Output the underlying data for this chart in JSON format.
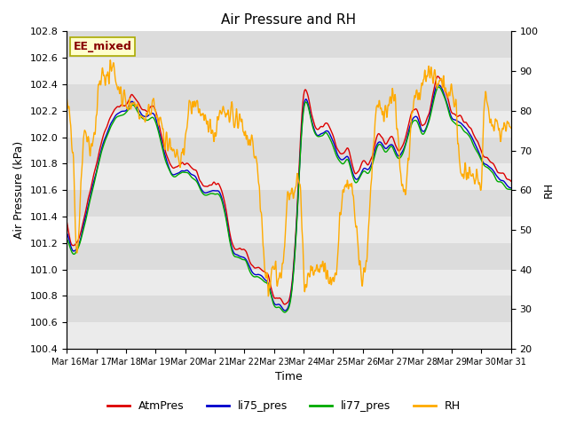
{
  "title": "Air Pressure and RH",
  "xlabel": "Time",
  "ylabel_left": "Air Pressure (kPa)",
  "ylabel_right": "RH",
  "annotation": "EE_mixed",
  "ylim_left": [
    100.4,
    102.8
  ],
  "ylim_right": [
    20,
    100
  ],
  "yticks_left": [
    100.4,
    100.6,
    100.8,
    101.0,
    101.2,
    101.4,
    101.6,
    101.8,
    102.0,
    102.2,
    102.4,
    102.6,
    102.8
  ],
  "yticks_right": [
    20,
    30,
    40,
    50,
    60,
    70,
    80,
    90,
    100
  ],
  "xtick_labels": [
    "Mar 16",
    "Mar 17",
    "Mar 18",
    "Mar 19",
    "Mar 20",
    "Mar 21",
    "Mar 22",
    "Mar 23",
    "Mar 24",
    "Mar 25",
    "Mar 26",
    "Mar 27",
    "Mar 28",
    "Mar 29",
    "Mar 30",
    "Mar 31"
  ],
  "legend_labels": [
    "AtmPres",
    "li75_pres",
    "li77_pres",
    "RH"
  ],
  "colors": {
    "AtmPres": "#dd0000",
    "li75_pres": "#0000cc",
    "li77_pres": "#00aa00",
    "RH": "#ffaa00"
  },
  "bg_colors": [
    "#ebebeb",
    "#dcdcdc"
  ],
  "annotation_bg": "#ffffcc",
  "annotation_fg": "#880000",
  "annotation_edge": "#aaaa00",
  "title_fontsize": 11,
  "axis_fontsize": 9,
  "tick_fontsize": 8,
  "legend_fontsize": 9,
  "figsize": [
    6.4,
    4.8
  ],
  "dpi": 100
}
